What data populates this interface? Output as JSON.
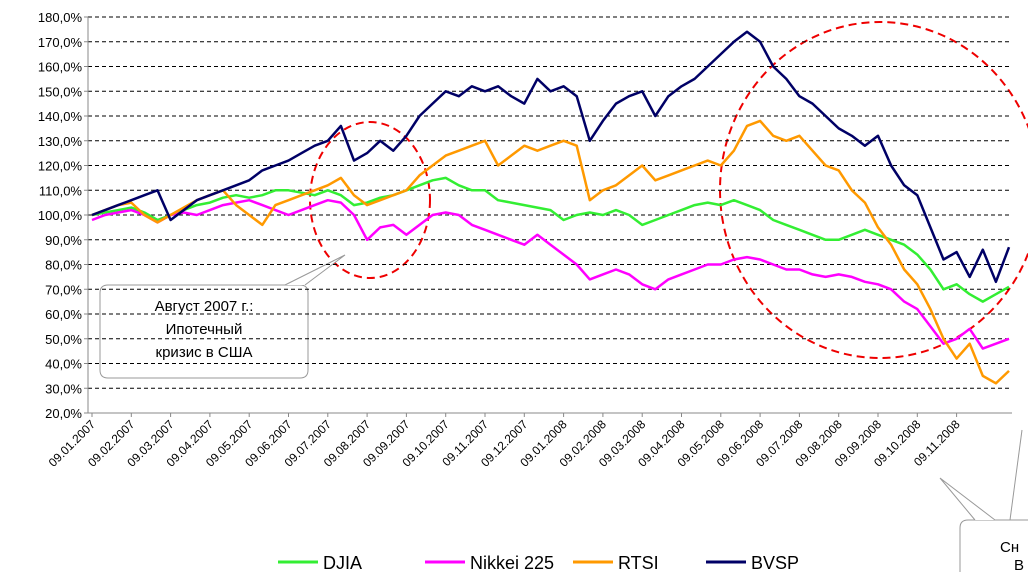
{
  "chart_data": {
    "type": "line",
    "categories": [
      "09.01.2007",
      null,
      null,
      "09.02.2007",
      null,
      null,
      "09.03.2007",
      null,
      null,
      "09.04.2007",
      null,
      null,
      "09.05.2007",
      null,
      null,
      "09.06.2007",
      null,
      null,
      "09.07.2007",
      null,
      null,
      "09.08.2007",
      null,
      null,
      "09.09.2007",
      null,
      null,
      "09.10.2007",
      null,
      null,
      "09.11.2007",
      null,
      null,
      "09.12.2007",
      null,
      null,
      "09.01.2008",
      null,
      null,
      "09.02.2008",
      null,
      null,
      "09.03.2008",
      null,
      null,
      "09.04.2008",
      null,
      null,
      "09.05.2008",
      null,
      null,
      "09.06.2008",
      null,
      null,
      "09.07.2008",
      null,
      null,
      "09.08.2008",
      null,
      null,
      "09.09.2008",
      null,
      null,
      "09.10.2008",
      null,
      null,
      "09.11.2008",
      null,
      null,
      null,
      null
    ],
    "series": [
      {
        "name": "DJIA",
        "color": "#33ee33",
        "values": [
          100,
          101,
          102,
          103,
          101,
          98,
          100,
          102,
          104,
          105,
          107,
          108,
          107,
          108,
          110,
          110,
          109,
          108,
          110,
          108,
          104,
          105,
          107,
          108,
          110,
          112,
          114,
          115,
          112,
          110,
          110,
          106,
          105,
          104,
          103,
          102,
          98,
          100,
          101,
          100,
          102,
          100,
          96,
          98,
          100,
          102,
          104,
          105,
          104,
          106,
          104,
          102,
          98,
          96,
          94,
          92,
          90,
          90,
          92,
          94,
          92,
          90,
          88,
          84,
          78,
          70,
          72,
          68,
          65,
          68,
          71
        ]
      },
      {
        "name": "Nikkei 225",
        "color": "#ff00ff",
        "values": [
          98,
          100,
          101,
          102,
          100,
          97,
          100,
          101,
          100,
          102,
          104,
          105,
          106,
          104,
          102,
          100,
          102,
          104,
          106,
          105,
          100,
          90,
          95,
          96,
          92,
          96,
          100,
          101,
          100,
          96,
          94,
          92,
          90,
          88,
          92,
          88,
          84,
          80,
          74,
          76,
          78,
          76,
          72,
          70,
          74,
          76,
          78,
          80,
          80,
          82,
          83,
          82,
          80,
          78,
          78,
          76,
          75,
          76,
          75,
          73,
          72,
          70,
          65,
          62,
          55,
          48,
          50,
          54,
          46,
          48,
          50
        ]
      },
      {
        "name": "RTSI",
        "color": "#ff9900",
        "values": [
          100,
          102,
          104,
          105,
          100,
          97,
          100,
          103,
          106,
          108,
          110,
          104,
          100,
          96,
          104,
          106,
          108,
          110,
          112,
          115,
          108,
          104,
          106,
          108,
          110,
          116,
          120,
          124,
          126,
          128,
          130,
          120,
          124,
          128,
          126,
          128,
          130,
          128,
          106,
          110,
          112,
          116,
          120,
          114,
          116,
          118,
          120,
          122,
          120,
          126,
          136,
          138,
          132,
          130,
          132,
          126,
          120,
          118,
          110,
          105,
          95,
          88,
          78,
          72,
          62,
          50,
          42,
          48,
          35,
          32,
          37
        ]
      },
      {
        "name": "BVSP",
        "color": "#000066",
        "values": [
          100,
          102,
          104,
          106,
          108,
          110,
          98,
          102,
          106,
          108,
          110,
          112,
          114,
          118,
          120,
          122,
          125,
          128,
          130,
          136,
          122,
          125,
          130,
          126,
          132,
          140,
          145,
          150,
          148,
          152,
          150,
          152,
          148,
          145,
          155,
          150,
          152,
          148,
          130,
          138,
          145,
          148,
          150,
          140,
          148,
          152,
          155,
          160,
          165,
          170,
          174,
          170,
          160,
          155,
          148,
          145,
          140,
          135,
          132,
          128,
          132,
          120,
          112,
          108,
          95,
          82,
          85,
          75,
          86,
          73,
          87
        ]
      }
    ],
    "ylim": [
      20,
      180
    ],
    "yticks": [
      {
        "value": 20,
        "label": "20,0%"
      },
      {
        "value": 30,
        "label": "30,0%"
      },
      {
        "value": 40,
        "label": "40,0%"
      },
      {
        "value": 50,
        "label": "50,0%"
      },
      {
        "value": 60,
        "label": "60,0%"
      },
      {
        "value": 70,
        "label": "70,0%"
      },
      {
        "value": 80,
        "label": "80,0%"
      },
      {
        "value": 90,
        "label": "90,0%"
      },
      {
        "value": 100,
        "label": "100,0%"
      },
      {
        "value": 110,
        "label": "110,0%"
      },
      {
        "value": 120,
        "label": "120,0%"
      },
      {
        "value": 130,
        "label": "130,0%"
      },
      {
        "value": 140,
        "label": "140,0%"
      },
      {
        "value": 150,
        "label": "150,0%"
      },
      {
        "value": 160,
        "label": "160,0%"
      },
      {
        "value": 170,
        "label": "170,0%"
      },
      {
        "value": 180,
        "label": "180,0%"
      }
    ],
    "grid": true,
    "annotations": [
      [
        "Август 2007 г.:",
        "Ипотечный",
        "кризис в США"
      ],
      [
        "Сн",
        "В"
      ]
    ]
  }
}
